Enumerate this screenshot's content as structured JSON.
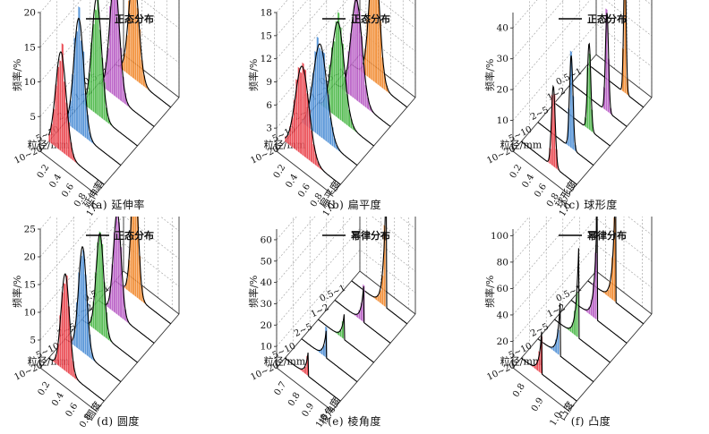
{
  "colors": {
    "series": [
      "#e8323c",
      "#3f86d2",
      "#3db33a",
      "#b14ec0",
      "#f07f1c"
    ],
    "curve": "#000000",
    "grid": "#9a9a9a",
    "axis": "#333333"
  },
  "chart_data": [
    {
      "type": "bar",
      "panel_label": "(a) 延伸率",
      "legend": "正态分布",
      "ylabel": "频率/%",
      "xlabel": "粒径/mm",
      "zlabel": "延伸率",
      "categories": [
        "10~20",
        "5~10",
        "2~5",
        "1~2",
        "0.5~1"
      ],
      "yticks": [
        "5",
        "10",
        "15",
        "20"
      ],
      "ylim": [
        0,
        20
      ],
      "zticks": [
        "0.2",
        "0.4",
        "0.6",
        "0.8",
        "1.0"
      ],
      "zlim": [
        0.1,
        1.0
      ],
      "series": [
        {
          "category": "10~20",
          "mean": 0.3,
          "sd": 0.085,
          "peak": 14.3
        },
        {
          "category": "5~10",
          "mean": 0.32,
          "sd": 0.08,
          "peak": 16.5
        },
        {
          "category": "2~5",
          "mean": 0.34,
          "sd": 0.078,
          "peak": 16.8
        },
        {
          "category": "1~2",
          "mean": 0.36,
          "sd": 0.078,
          "peak": 16.8
        },
        {
          "category": "0.5~1",
          "mean": 0.4,
          "sd": 0.08,
          "peak": 15.0
        }
      ]
    },
    {
      "type": "bar",
      "panel_label": "(b) 扁平度",
      "legend": "正态分布",
      "ylabel": "频率/%",
      "xlabel": "粒径/mm",
      "zlabel": "扁平度",
      "categories": [
        "10~20",
        "5~10",
        "2~5",
        "1~2",
        "0.5~1"
      ],
      "yticks": [
        "3",
        "6",
        "9",
        "12",
        "15",
        "18"
      ],
      "ylim": [
        0,
        18
      ],
      "zticks": [
        "0.2",
        "0.4",
        "0.6",
        "0.8",
        "1.0"
      ],
      "zlim": [
        0.1,
        1.0
      ],
      "series": [
        {
          "category": "10~20",
          "mean": 0.38,
          "sd": 0.11,
          "peak": 11.5
        },
        {
          "category": "5~10",
          "mean": 0.4,
          "sd": 0.11,
          "peak": 12.0
        },
        {
          "category": "2~5",
          "mean": 0.42,
          "sd": 0.1,
          "peak": 12.5
        },
        {
          "category": "1~2",
          "mean": 0.45,
          "sd": 0.09,
          "peak": 13.0
        },
        {
          "category": "0.5~1",
          "mean": 0.47,
          "sd": 0.08,
          "peak": 17.0
        }
      ]
    },
    {
      "type": "bar",
      "panel_label": "(c) 球形度",
      "legend": "正态分布",
      "ylabel": "频率/%",
      "xlabel": "粒径/mm",
      "zlabel": "球形度",
      "categories": [
        "10~20",
        "5~10",
        "2~5",
        "1~2",
        "0.5~1"
      ],
      "yticks": [
        "10",
        "20",
        "30",
        "40"
      ],
      "ylim": [
        0,
        45
      ],
      "zticks": [
        "0.2",
        "0.4",
        "0.6",
        "0.8",
        "1.0"
      ],
      "zlim": [
        0.1,
        1.0
      ],
      "series": [
        {
          "category": "10~20",
          "mean": 0.62,
          "sd": 0.03,
          "peak": 26.0
        },
        {
          "category": "5~10",
          "mean": 0.64,
          "sd": 0.028,
          "peak": 30.0
        },
        {
          "category": "2~5",
          "mean": 0.66,
          "sd": 0.027,
          "peak": 28.0
        },
        {
          "category": "1~2",
          "mean": 0.68,
          "sd": 0.025,
          "peak": 32.0
        },
        {
          "category": "0.5~1",
          "mean": 0.7,
          "sd": 0.02,
          "peak": 42.0
        }
      ]
    },
    {
      "type": "bar",
      "panel_label": "(d) 圆度",
      "legend": "正态分布",
      "ylabel": "频率/%",
      "xlabel": "粒径/mm",
      "zlabel": "圆度",
      "categories": [
        "10~20",
        "5~10",
        "2~5",
        "1~2",
        "0.5~1"
      ],
      "yticks": [
        "5",
        "10",
        "15",
        "20",
        "25"
      ],
      "ylim": [
        0,
        25
      ],
      "zticks": [
        "0.2",
        "0.4",
        "0.6",
        "0.8"
      ],
      "zlim": [
        0.1,
        0.9
      ],
      "series": [
        {
          "category": "10~20",
          "mean": 0.34,
          "sd": 0.06,
          "peak": 17.5
        },
        {
          "category": "5~10",
          "mean": 0.35,
          "sd": 0.058,
          "peak": 19.0
        },
        {
          "category": "2~5",
          "mean": 0.36,
          "sd": 0.055,
          "peak": 18.0
        },
        {
          "category": "1~2",
          "mean": 0.37,
          "sd": 0.055,
          "peak": 18.5
        },
        {
          "category": "0.5~1",
          "mean": 0.38,
          "sd": 0.05,
          "peak": 22.0
        }
      ]
    },
    {
      "type": "bar",
      "panel_label": "(e) 棱角度",
      "legend": "幂律分布",
      "ylabel": "频率/%",
      "xlabel": "粒径/mm",
      "zlabel": "棱角度",
      "categories": [
        "10~20",
        "5~10",
        "2~5",
        "1~2",
        "0.5~1"
      ],
      "yticks": [
        "10",
        "20",
        "30",
        "40",
        "50",
        "60"
      ],
      "ylim": [
        0,
        65
      ],
      "zticks": [
        "0.7",
        "0.8",
        "0.9",
        "1.0"
      ],
      "zlim": [
        0.65,
        1.05
      ],
      "series": [
        {
          "category": "10~20",
          "end": 0.82,
          "peak": 13.0
        },
        {
          "category": "5~10",
          "end": 0.83,
          "peak": 15.0
        },
        {
          "category": "2~5",
          "end": 0.84,
          "peak": 14.0
        },
        {
          "category": "1~2",
          "end": 0.86,
          "peak": 20.0
        },
        {
          "category": "0.5~1",
          "end": 0.9,
          "peak": 62.0
        }
      ]
    },
    {
      "type": "bar",
      "panel_label": "(f) 凸度",
      "legend": "幂律分布",
      "ylabel": "频率/%",
      "xlabel": "粒径/mm",
      "zlabel": "凸度",
      "categories": [
        "10~20",
        "5~10",
        "2~5",
        "1~2",
        "0.5~1"
      ],
      "yticks": [
        "20",
        "40",
        "60",
        "80",
        "100"
      ],
      "ylim": [
        0,
        105
      ],
      "zticks": [
        "0.8",
        "0.9",
        "1.0"
      ],
      "zlim": [
        0.75,
        1.05
      ],
      "series": [
        {
          "category": "10~20",
          "end": 0.86,
          "peak": 32.0
        },
        {
          "category": "5~10",
          "end": 0.87,
          "peak": 40.0
        },
        {
          "category": "2~5",
          "end": 0.88,
          "peak": 68.0
        },
        {
          "category": "1~2",
          "end": 0.89,
          "peak": 86.0
        },
        {
          "category": "0.5~1",
          "end": 0.9,
          "peak": 97.0
        }
      ]
    }
  ]
}
